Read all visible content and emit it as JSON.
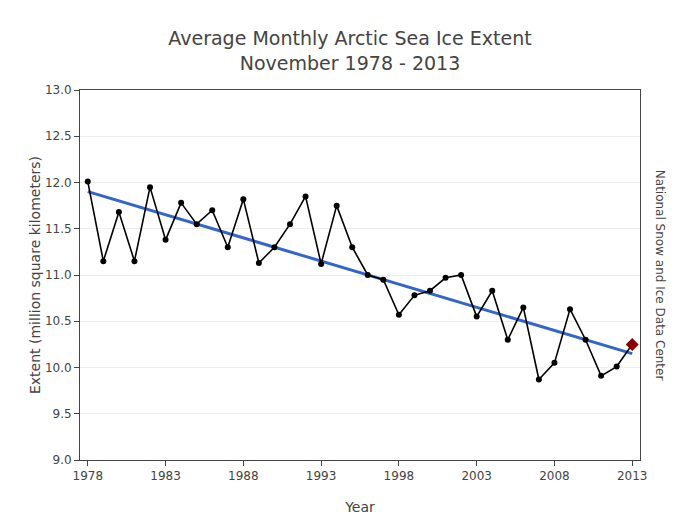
{
  "chart_data": {
    "type": "line",
    "title": "Average Monthly Arctic Sea Ice Extent\nNovember 1978 - 2013",
    "xlabel": "Year",
    "ylabel": "Extent (million square kilometers)",
    "annotations": [
      "National Snow and Ice Data Center"
    ],
    "x": [
      1978,
      1979,
      1980,
      1981,
      1982,
      1983,
      1984,
      1985,
      1986,
      1987,
      1988,
      1989,
      1990,
      1991,
      1992,
      1993,
      1994,
      1995,
      1996,
      1997,
      1998,
      1999,
      2000,
      2001,
      2002,
      2003,
      2004,
      2005,
      2006,
      2007,
      2008,
      2009,
      2010,
      2011,
      2012,
      2013
    ],
    "series": [
      {
        "color": "#3366CC",
        "marker": "none",
        "line_style": "solid",
        "x": [
          1978,
          2013
        ],
        "values": [
          11.9013,
          10.1498
        ]
      },
      {
        "color": "#000000",
        "marker": "circle",
        "line_style": "solid",
        "values": [
          12.01,
          11.15,
          11.68,
          11.15,
          11.95,
          11.38,
          11.78,
          11.55,
          11.7,
          11.3,
          11.82,
          11.13,
          11.3,
          11.55,
          11.85,
          11.12,
          11.75,
          11.3,
          11.0,
          10.95,
          10.57,
          10.78,
          10.83,
          10.97,
          11.0,
          10.55,
          10.83,
          10.3,
          10.65,
          9.87,
          10.05,
          10.63,
          10.3,
          9.91,
          10.01,
          10.25
        ]
      },
      {
        "color": "#8B0000",
        "marker": "diamond",
        "line_style": "none",
        "x": [
          2013
        ],
        "values": [
          10.25
        ]
      }
    ],
    "xlim": [
      1977.5,
      2013.5
    ],
    "xticks": [
      1978,
      1983,
      1988,
      1993,
      1998,
      2003,
      2008,
      2013
    ],
    "ylim": [
      9.0,
      13.0
    ],
    "yticks": [
      {
        "value": 9,
        "label": "9.0"
      },
      9.5,
      {
        "value": 10,
        "label": "10.0"
      },
      10.5,
      {
        "value": 11,
        "label": "11.0"
      },
      11.5,
      {
        "value": 12,
        "label": "12.0"
      },
      12.5,
      {
        "value": 13,
        "label": "13.0"
      }
    ],
    "grid": "y"
  }
}
